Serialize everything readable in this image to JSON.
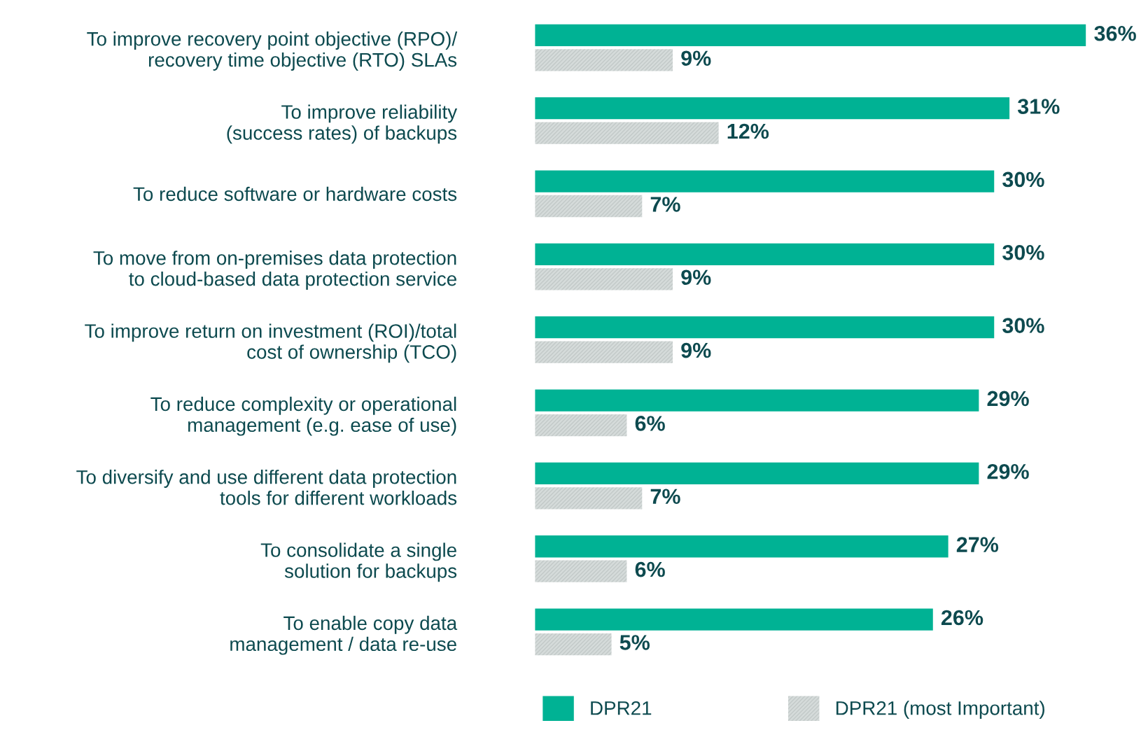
{
  "chart_data": {
    "type": "bar",
    "orientation": "horizontal",
    "categories": [
      "To improve recovery point objective (RPO)/\nrecovery time objective (RTO) SLAs",
      "To improve reliability\n(success rates) of backups",
      "To reduce software or hardware costs",
      "To move from on-premises data protection\nto cloud-based data protection service",
      "To improve return on investment (ROI)/total\ncost of ownership (TCO)",
      "To reduce complexity or operational\nmanagement (e.g. ease of use)",
      "To diversify and use different data protection\ntools for different workloads",
      "To consolidate a single\nsolution for backups",
      "To enable copy data\nmanagement / data re-use"
    ],
    "series": [
      {
        "name": "DPR21",
        "color": "#00b294",
        "values": [
          36,
          31,
          30,
          30,
          30,
          29,
          29,
          27,
          26
        ],
        "value_labels": [
          "36%",
          "31%",
          "30%",
          "30%",
          "30%",
          "29%",
          "29%",
          "27%",
          "26%"
        ]
      },
      {
        "name": "DPR21 (most Important)",
        "color": "#d5dbda",
        "values": [
          9,
          12,
          7,
          9,
          9,
          6,
          7,
          6,
          5
        ],
        "value_labels": [
          "9%",
          "12%",
          "7%",
          "9%",
          "9%",
          "6%",
          "7%",
          "6%",
          "5%"
        ]
      }
    ],
    "xlim": [
      0,
      36
    ],
    "tick_labels": false,
    "grid": false,
    "legend": "bottom"
  }
}
